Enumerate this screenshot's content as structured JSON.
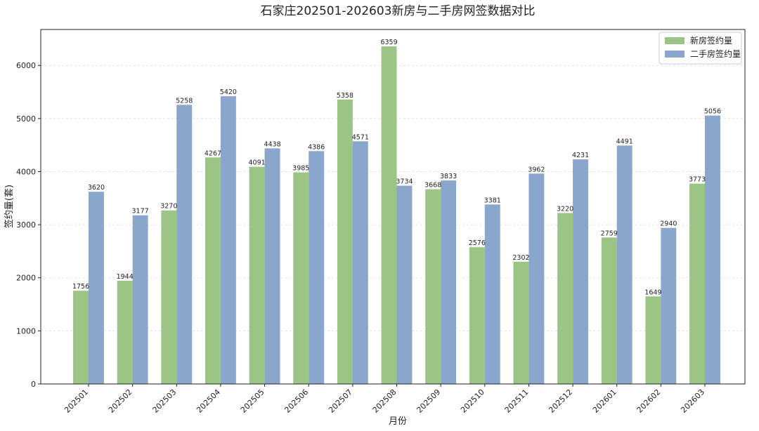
{
  "chart_data": {
    "type": "bar",
    "title": "石家庄202501-202603新房与二手房网签数据对比",
    "xlabel": "月份",
    "ylabel": "签约量(套)",
    "categories": [
      "202501",
      "202502",
      "202503",
      "202504",
      "202505",
      "202506",
      "202507",
      "202508",
      "202509",
      "202510",
      "202511",
      "202512",
      "202601",
      "202602",
      "202603"
    ],
    "series": [
      {
        "name": "新房签约量",
        "color": "#9bc485",
        "values": [
          1756,
          1944,
          3270,
          4267,
          4091,
          3985,
          5358,
          6359,
          3668,
          2576,
          2302,
          3220,
          2759,
          1649,
          3773
        ]
      },
      {
        "name": "二手房签约量",
        "color": "#8aa6cd",
        "values": [
          3620,
          3177,
          5258,
          5420,
          4438,
          4386,
          4571,
          3734,
          3833,
          3381,
          3962,
          4231,
          4491,
          2940,
          5056
        ]
      }
    ],
    "ylim": [
      0,
      6677
    ],
    "yticks": [
      0,
      1000,
      2000,
      3000,
      4000,
      5000,
      6000
    ],
    "grid": true,
    "legend_position": "top-right"
  }
}
